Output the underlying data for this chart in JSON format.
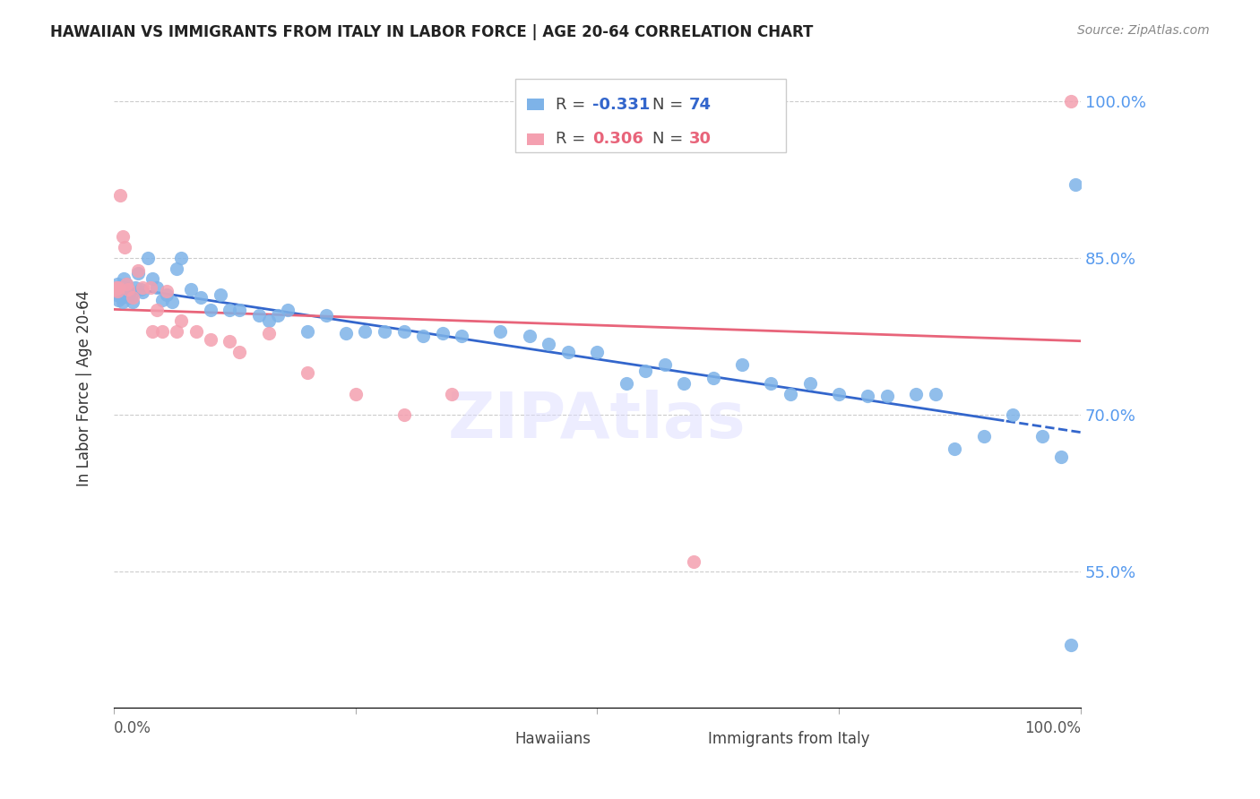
{
  "title": "HAWAIIAN VS IMMIGRANTS FROM ITALY IN LABOR FORCE | AGE 20-64 CORRELATION CHART",
  "source": "Source: ZipAtlas.com",
  "ylabel": "In Labor Force | Age 20-64",
  "y_tick_labels": [
    "100.0%",
    "85.0%",
    "70.0%",
    "55.0%"
  ],
  "y_tick_values": [
    1.0,
    0.85,
    0.7,
    0.55
  ],
  "x_range": [
    0.0,
    1.0
  ],
  "y_range": [
    0.42,
    1.03
  ],
  "hawaiian_R": -0.331,
  "hawaiian_N": 74,
  "italy_R": 0.306,
  "italy_N": 30,
  "hawaii_color": "#7EB3E8",
  "italy_color": "#F4A0B0",
  "hawaii_line_color": "#3366CC",
  "italy_line_color": "#E8647A",
  "hawaii_x": [
    0.002,
    0.003,
    0.004,
    0.005,
    0.006,
    0.007,
    0.008,
    0.009,
    0.01,
    0.011,
    0.012,
    0.013,
    0.014,
    0.015,
    0.016,
    0.018,
    0.02,
    0.022,
    0.025,
    0.028,
    0.03,
    0.035,
    0.04,
    0.045,
    0.05,
    0.055,
    0.06,
    0.065,
    0.07,
    0.08,
    0.09,
    0.1,
    0.11,
    0.12,
    0.13,
    0.15,
    0.16,
    0.17,
    0.18,
    0.2,
    0.22,
    0.24,
    0.26,
    0.28,
    0.3,
    0.32,
    0.34,
    0.36,
    0.4,
    0.43,
    0.45,
    0.47,
    0.5,
    0.53,
    0.55,
    0.57,
    0.59,
    0.62,
    0.65,
    0.68,
    0.7,
    0.72,
    0.75,
    0.78,
    0.8,
    0.83,
    0.85,
    0.87,
    0.9,
    0.93,
    0.96,
    0.98,
    0.99,
    0.995
  ],
  "hawaii_y": [
    0.82,
    0.815,
    0.825,
    0.81,
    0.822,
    0.818,
    0.812,
    0.808,
    0.83,
    0.822,
    0.819,
    0.825,
    0.817,
    0.813,
    0.816,
    0.812,
    0.808,
    0.822,
    0.835,
    0.82,
    0.817,
    0.85,
    0.83,
    0.822,
    0.81,
    0.815,
    0.808,
    0.84,
    0.85,
    0.82,
    0.812,
    0.8,
    0.815,
    0.8,
    0.8,
    0.795,
    0.79,
    0.795,
    0.8,
    0.78,
    0.795,
    0.778,
    0.78,
    0.78,
    0.78,
    0.775,
    0.778,
    0.775,
    0.78,
    0.775,
    0.768,
    0.76,
    0.76,
    0.73,
    0.742,
    0.748,
    0.73,
    0.735,
    0.748,
    0.73,
    0.72,
    0.73,
    0.72,
    0.718,
    0.718,
    0.72,
    0.72,
    0.668,
    0.68,
    0.7,
    0.68,
    0.66,
    0.48,
    0.92
  ],
  "italy_x": [
    0.002,
    0.003,
    0.004,
    0.005,
    0.007,
    0.009,
    0.011,
    0.013,
    0.015,
    0.02,
    0.025,
    0.03,
    0.038,
    0.045,
    0.055,
    0.07,
    0.085,
    0.1,
    0.13,
    0.16,
    0.2,
    0.25,
    0.3,
    0.35,
    0.05,
    0.065,
    0.04,
    0.12,
    0.6,
    0.99
  ],
  "italy_y": [
    0.82,
    0.822,
    0.818,
    0.822,
    0.91,
    0.87,
    0.86,
    0.825,
    0.82,
    0.812,
    0.838,
    0.822,
    0.822,
    0.8,
    0.818,
    0.79,
    0.78,
    0.772,
    0.76,
    0.778,
    0.74,
    0.72,
    0.7,
    0.72,
    0.78,
    0.78,
    0.78,
    0.77,
    0.56,
    1.0
  ]
}
